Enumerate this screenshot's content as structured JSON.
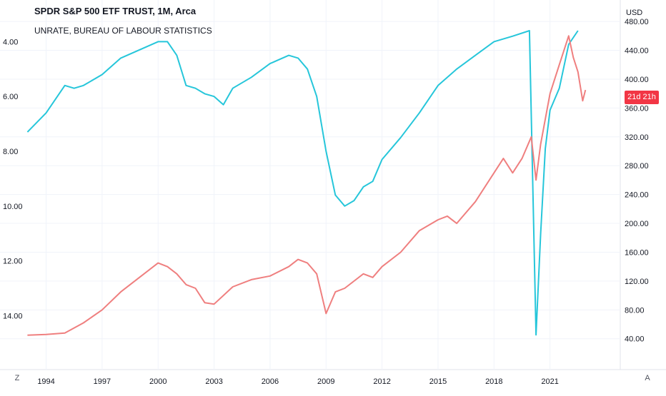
{
  "chart_data": {
    "type": "line",
    "title": "SPDR S&P 500 ETF TRUST, 1M, Arca",
    "subtitle": "UNRATE, BUREAU OF LABOUR STATISTICS",
    "x_ticks": [
      "1994",
      "1997",
      "2000",
      "2003",
      "2006",
      "2009",
      "2012",
      "2015",
      "2018",
      "2021"
    ],
    "x_range": [
      1992.6,
      2024.0
    ],
    "left_axis": {
      "ticks": [
        "4.00",
        "6.00",
        "8.00",
        "10.00",
        "12.00",
        "14.00"
      ],
      "range": [
        3.0,
        15.5
      ],
      "inverted": true
    },
    "right_axis": {
      "title": "USD",
      "ticks": [
        "480.00",
        "440.00",
        "400.00",
        "360.00",
        "320.00",
        "280.00",
        "240.00",
        "200.00",
        "160.00",
        "120.00",
        "80.00",
        "40.00"
      ],
      "range": [
        15,
        490
      ]
    },
    "grid": true,
    "series": [
      {
        "color": "#26c6da",
        "axis": "left",
        "x": [
          1993.0,
          1994.0,
          1995.0,
          1995.5,
          1996.0,
          1997.0,
          1998.0,
          1999.0,
          2000.0,
          2000.5,
          2001.0,
          2001.5,
          2002.0,
          2002.5,
          2003.0,
          2003.5,
          2004.0,
          2005.0,
          2006.0,
          2007.0,
          2007.5,
          2008.0,
          2008.5,
          2009.0,
          2009.5,
          2010.0,
          2010.5,
          2011.0,
          2011.5,
          2012.0,
          2013.0,
          2014.0,
          2015.0,
          2016.0,
          2017.0,
          2018.0,
          2019.0,
          2019.9,
          2020.25,
          2020.5,
          2020.75,
          2021.0,
          2021.5,
          2022.0,
          2022.5
        ],
        "y": [
          7.3,
          6.6,
          5.6,
          5.7,
          5.6,
          5.2,
          4.6,
          4.3,
          4.0,
          4.0,
          4.5,
          5.6,
          5.7,
          5.9,
          6.0,
          6.3,
          5.7,
          5.3,
          4.8,
          4.5,
          4.6,
          5.0,
          6.0,
          8.0,
          9.6,
          10.0,
          9.8,
          9.3,
          9.1,
          8.3,
          7.5,
          6.6,
          5.6,
          5.0,
          4.5,
          4.0,
          3.8,
          3.6,
          14.7,
          11.0,
          7.9,
          6.5,
          5.7,
          4.1,
          3.6
        ]
      },
      {
        "color": "#ef7f7f",
        "axis": "right",
        "x": [
          1993.0,
          1994.0,
          1995.0,
          1996.0,
          1997.0,
          1998.0,
          1999.0,
          2000.0,
          2000.5,
          2001.0,
          2001.5,
          2002.0,
          2002.5,
          2003.0,
          2004.0,
          2005.0,
          2006.0,
          2007.0,
          2007.5,
          2008.0,
          2008.5,
          2009.0,
          2009.5,
          2010.0,
          2011.0,
          2011.5,
          2012.0,
          2013.0,
          2014.0,
          2015.0,
          2015.5,
          2016.0,
          2017.0,
          2018.0,
          2018.5,
          2019.0,
          2019.5,
          2020.0,
          2020.25,
          2020.5,
          2021.0,
          2021.5,
          2022.0,
          2022.25,
          2022.5,
          2022.75,
          2022.9
        ],
        "y": [
          45,
          46,
          48,
          62,
          80,
          105,
          125,
          145,
          140,
          130,
          115,
          110,
          90,
          88,
          112,
          122,
          127,
          140,
          150,
          145,
          130,
          75,
          105,
          110,
          130,
          125,
          140,
          160,
          190,
          205,
          210,
          200,
          230,
          270,
          290,
          270,
          290,
          320,
          260,
          310,
          380,
          420,
          460,
          430,
          410,
          370,
          385
        ]
      }
    ]
  },
  "badge_text": "21d 21h",
  "corner_left": "Z",
  "corner_right": "A"
}
